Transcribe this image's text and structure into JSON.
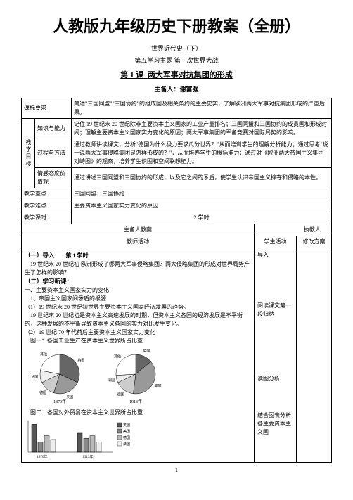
{
  "main_title": "人教版九年级历史下册教案（全册）",
  "subtitles": {
    "line1": "世界近代史（下）",
    "line2": "第五学习主题  第一次世界大战"
  },
  "lesson": {
    "prefix": "第 1 课",
    "title": "两大军事对抗集团的形成"
  },
  "presenter_label": "主备人：",
  "presenter_name": "谢富强",
  "table": {
    "row_keyao_label": "课标要求",
    "row_keyao_text": "简述\"三国同盟\"\"三国协约\"的组成国及相关条约的主要史实，了解欧洲两大军事对抗集团形成的严重后果。",
    "vert_jiaoxue": "教学目标",
    "row_zhishi_label": "知识与能力",
    "row_zhishi_text": "记住 19 世纪末 20 世纪除非主要资本主义国家的工业产量排名；三国同盟和三国协约的成员国和形成时间；理解主要资本主义国家实力变化的原因；两大军事集团的军备竞赛对国际局势的影响。",
    "row_guocheng_label": "过程与方法",
    "row_guocheng_text": "通过教师讲读课文，分析\"德国为什么极力要求瓜分世界？\"从而培训学生的理解分析能力；通过思考\"说一说两大军事侵略集团是怎样形成的？\"，从而培养学生的概括能力；通过对《欧洲两大帝国主义集团对峙图》的观察，培养学生识图和空间联想能力。",
    "row_qinggan_label": "情感态度价值观",
    "row_qinggan_text": "通过讲述三国同盟和三国协约的形成，以及它之间的矛盾，使学生认识帝国主义掠夺和侵略的本性。",
    "row_zhongdian_label": "教学重点",
    "row_zhongdian_text": "三国同盟、三国协约",
    "row_nandian_label": "教学难点",
    "row_nandian_text": "主要资本主义国家实力变化的原因",
    "row_keshi_label": "教学课时",
    "row_keshi_text": "2 学时",
    "header_zhubeiren": "主备人教案",
    "header_zhijiao": "执教人",
    "header_jiaoshi": "教师活动",
    "header_xuesheng": "学生活动",
    "header_xiugai": "修改方案"
  },
  "content": {
    "sec1_title": "（一）导入",
    "sec1_sub": "第 1 学时",
    "sec1_text": "19 世纪末 20 世纪初  欧洲形成了哪两大军事侵略集团？两大侵略集团的形成对世界局势产生了怎样的影响？",
    "sec2_title": "（二）学习新课：",
    "item1": "一、主要资本主义国家实力的变化",
    "item1_1": "1、帝国主义国家间矛盾的根源",
    "item1_1_1": "（1）19 世纪末 20 世纪初世界主要资本主义国家经济发展的趋势。",
    "item1_1_text": "19 世纪末 20 世纪初是资本主义高速发展的时期，但资本主义各国的经济发展是不平衡的，这种发展的不平衡导致资本主义各国的实力对比发生变化。",
    "item1_1_2": "（2）19 世纪 70 年代前后主要资本主义国家实力变化",
    "chart1_label": "图一：各国工业生产在资本主义世界所占比重",
    "chart2_label": "图二：各国对外贸易在资本主义世界所占比重",
    "student_col": {
      "s1": "导入",
      "s2": "阅读课文第一段归纳",
      "s3": "读图分析",
      "s4": "结合图表分析各主要资本主义国"
    }
  },
  "pie_charts": {
    "labels": [
      "英国",
      "美国",
      "德国",
      "法国",
      "其他"
    ],
    "chart1_year": "1870年",
    "chart1_values": [
      32,
      23,
      13,
      10,
      22
    ],
    "chart2_year": "1913年",
    "chart2_values": [
      14,
      38,
      16,
      6,
      26
    ],
    "colors": [
      "#666666",
      "#999999",
      "#cccccc",
      "#eeeeee",
      "#ffffff"
    ],
    "stroke": "#000000"
  },
  "bar_chart": {
    "year1": "1870年",
    "year2": "1913年",
    "categories": [
      "英国",
      "美国",
      "德国",
      "法国"
    ],
    "series1": [
      22,
      8,
      13,
      10
    ],
    "series2": [
      15,
      11,
      13,
      8
    ],
    "legend": [
      "英国",
      "美国",
      "德国",
      "法国"
    ],
    "colors": [
      "#555555",
      "#888888",
      "#bbbbbb",
      "#eeeeee"
    ],
    "ymax": 25,
    "stroke": "#000000"
  },
  "page_number": "1"
}
